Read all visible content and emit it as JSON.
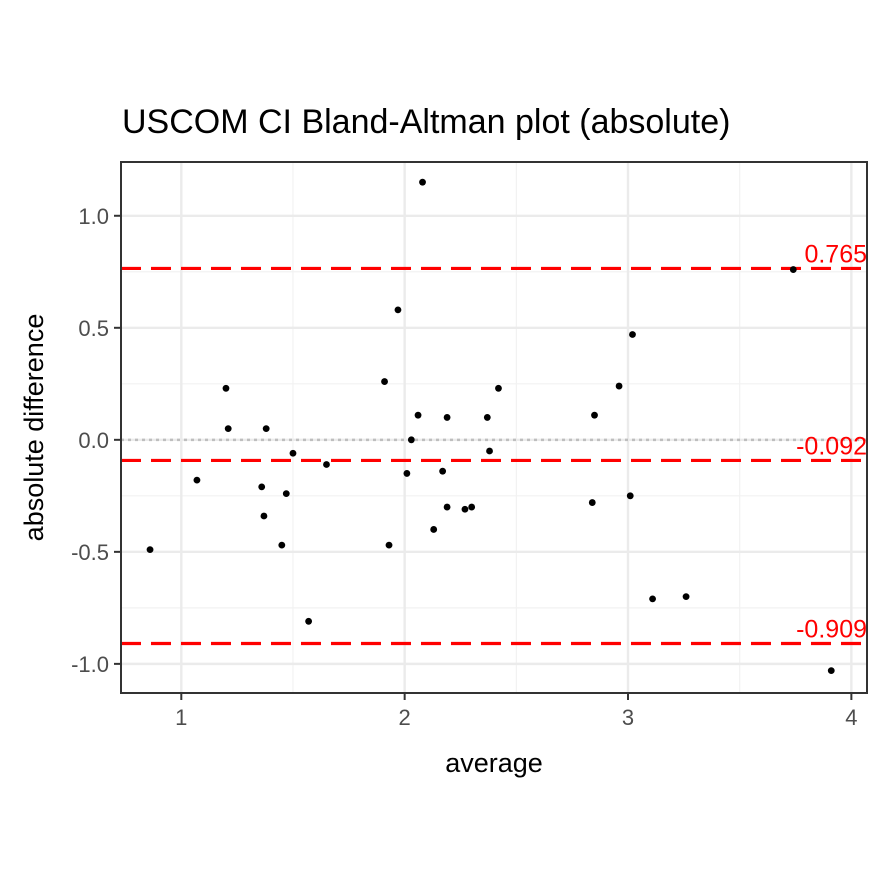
{
  "chart_data": {
    "type": "scatter",
    "title": "USCOM CI   Bland-Altman plot (absolute)",
    "xlabel": "average",
    "ylabel": "absolute difference",
    "xlim": [
      0.73,
      4.07
    ],
    "ylim": [
      -1.13,
      1.24
    ],
    "x_ticks": [
      1,
      2,
      3,
      4
    ],
    "x_tick_labels": [
      "1",
      "2",
      "3",
      "4"
    ],
    "y_ticks": [
      -1.0,
      -0.5,
      0.0,
      0.5,
      1.0
    ],
    "y_tick_labels": [
      "-1.0",
      "-0.5",
      "0.0",
      "0.5",
      "1.0"
    ],
    "grid": true,
    "zero_line": {
      "y": 0.0,
      "color": "#bebebe",
      "style": "dotted"
    },
    "limit_lines": [
      {
        "y": 0.765,
        "label": "0.765",
        "color": "#ff0000",
        "style": "dashed"
      },
      {
        "y": -0.092,
        "label": "-0.092",
        "color": "#ff0000",
        "style": "dashed"
      },
      {
        "y": -0.909,
        "label": "-0.909",
        "color": "#ff0000",
        "style": "dashed"
      }
    ],
    "point_color": "#000000",
    "points": [
      {
        "x": 0.86,
        "y": -0.49
      },
      {
        "x": 1.07,
        "y": -0.18
      },
      {
        "x": 1.2,
        "y": 0.23
      },
      {
        "x": 1.21,
        "y": 0.05
      },
      {
        "x": 1.36,
        "y": -0.21
      },
      {
        "x": 1.37,
        "y": -0.34
      },
      {
        "x": 1.38,
        "y": 0.05
      },
      {
        "x": 1.45,
        "y": -0.47
      },
      {
        "x": 1.47,
        "y": -0.24
      },
      {
        "x": 1.5,
        "y": -0.06
      },
      {
        "x": 1.57,
        "y": -0.81
      },
      {
        "x": 1.65,
        "y": -0.11
      },
      {
        "x": 1.91,
        "y": 0.26
      },
      {
        "x": 1.93,
        "y": -0.47
      },
      {
        "x": 1.97,
        "y": 0.58
      },
      {
        "x": 2.01,
        "y": -0.15
      },
      {
        "x": 2.03,
        "y": 0.0
      },
      {
        "x": 2.06,
        "y": 0.11
      },
      {
        "x": 2.08,
        "y": 1.15
      },
      {
        "x": 2.13,
        "y": -0.4
      },
      {
        "x": 2.17,
        "y": -0.14
      },
      {
        "x": 2.19,
        "y": 0.1
      },
      {
        "x": 2.19,
        "y": -0.3
      },
      {
        "x": 2.27,
        "y": -0.31
      },
      {
        "x": 2.3,
        "y": -0.3
      },
      {
        "x": 2.37,
        "y": 0.1
      },
      {
        "x": 2.38,
        "y": -0.05
      },
      {
        "x": 2.42,
        "y": 0.23
      },
      {
        "x": 2.84,
        "y": -0.28
      },
      {
        "x": 2.85,
        "y": 0.11
      },
      {
        "x": 2.96,
        "y": 0.24
      },
      {
        "x": 3.01,
        "y": -0.25
      },
      {
        "x": 3.02,
        "y": 0.47
      },
      {
        "x": 3.11,
        "y": -0.71
      },
      {
        "x": 3.26,
        "y": -0.7
      },
      {
        "x": 3.74,
        "y": 0.76
      },
      {
        "x": 3.91,
        "y": -1.03
      }
    ]
  }
}
